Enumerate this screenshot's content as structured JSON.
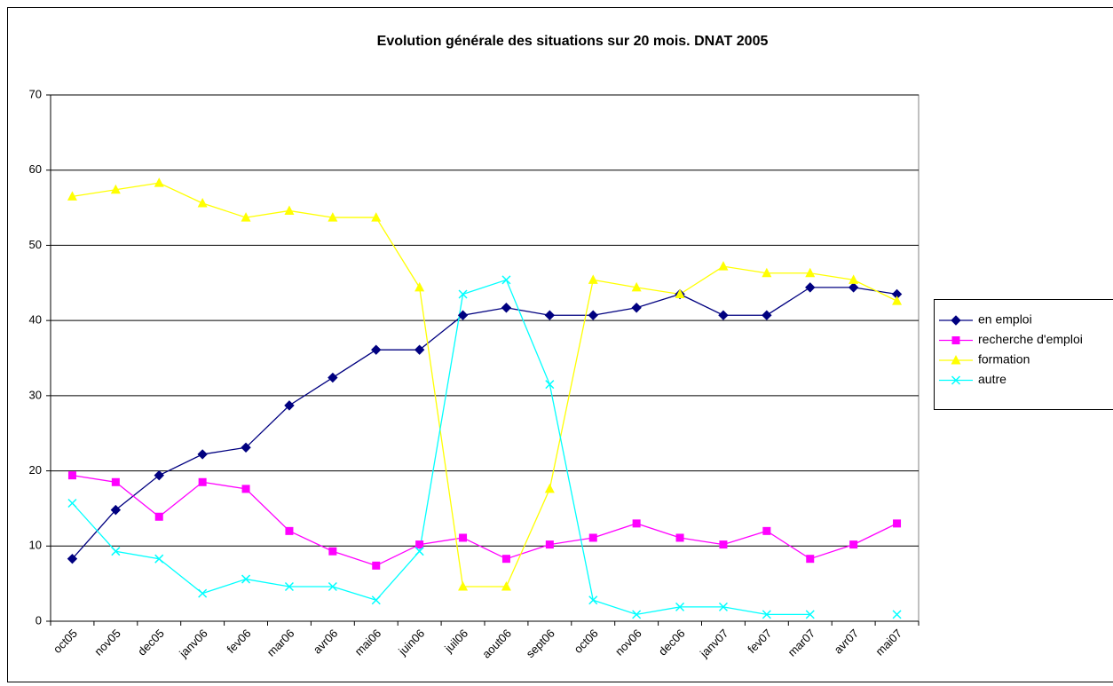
{
  "chart_data": {
    "type": "line",
    "title": "Evolution générale des situations sur 20 mois. DNAT 2005",
    "categories": [
      "oct05",
      "nov05",
      "dec05",
      "janv06",
      "fev06",
      "mar06",
      "avr06",
      "mai06",
      "juin06",
      "juil06",
      "aout06",
      "sept06",
      "oct06",
      "nov06",
      "dec06",
      "janv07",
      "fev07",
      "mar07",
      "avr07",
      "mai07"
    ],
    "series": [
      {
        "name": "en emploi",
        "color": "#000080",
        "marker": "diamond",
        "values": [
          8.3,
          14.8,
          19.4,
          22.2,
          23.1,
          28.7,
          32.4,
          36.1,
          36.1,
          40.7,
          41.7,
          40.7,
          40.7,
          41.7,
          43.5,
          40.7,
          40.7,
          44.4,
          44.4,
          43.5
        ]
      },
      {
        "name": "recherche d'emploi",
        "color": "#ff00ff",
        "marker": "square",
        "values": [
          19.4,
          18.5,
          13.9,
          18.5,
          17.6,
          12.0,
          9.3,
          7.4,
          10.2,
          11.1,
          8.3,
          10.2,
          11.1,
          13.0,
          11.1,
          10.2,
          12.0,
          8.3,
          10.2,
          13.0
        ]
      },
      {
        "name": "formation",
        "color": "#ffff00",
        "marker": "triangle",
        "values": [
          56.5,
          57.4,
          58.3,
          55.6,
          53.7,
          54.6,
          53.7,
          53.7,
          44.4,
          4.6,
          4.6,
          17.6,
          45.4,
          44.4,
          43.5,
          47.2,
          46.3,
          46.3,
          45.4,
          42.6
        ]
      },
      {
        "name": "autre",
        "color": "#00ffff",
        "marker": "x",
        "values": [
          15.7,
          9.3,
          8.3,
          3.7,
          5.6,
          4.6,
          4.6,
          2.8,
          9.3,
          43.5,
          45.4,
          31.5,
          2.8,
          0.9,
          1.9,
          1.9,
          0.9,
          0.9,
          null,
          0.9
        ]
      }
    ],
    "ylim": [
      0,
      70
    ],
    "yticks": [
      0,
      10,
      20,
      30,
      40,
      50,
      60,
      70
    ],
    "grid": true,
    "legend": "right"
  }
}
